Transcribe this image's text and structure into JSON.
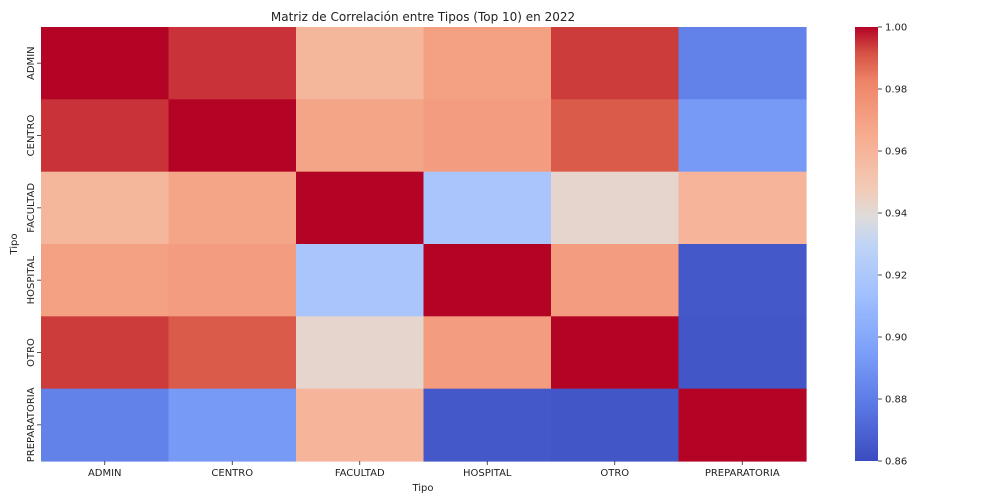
{
  "chart_data": {
    "type": "heatmap",
    "title": "Matriz de Correlación entre Tipos (Top 10) en 2022",
    "xlabel": "Tipo",
    "ylabel": "Tipo",
    "x_categories": [
      "ADMIN",
      "CENTRO",
      "FACULTAD",
      "HOSPITAL",
      "OTRO",
      "PREPARATORIA"
    ],
    "y_categories": [
      "ADMIN",
      "CENTRO",
      "FACULTAD",
      "HOSPITAL",
      "OTRO",
      "PREPARATORIA"
    ],
    "values": [
      [
        1.0,
        0.995,
        0.959,
        0.97,
        0.994,
        0.882
      ],
      [
        0.995,
        1.0,
        0.968,
        0.972,
        0.99,
        0.893
      ],
      [
        0.959,
        0.968,
        1.0,
        0.918,
        0.942,
        0.96
      ],
      [
        0.97,
        0.972,
        0.918,
        1.0,
        0.972,
        0.865
      ],
      [
        0.994,
        0.99,
        0.942,
        0.972,
        1.0,
        0.864
      ],
      [
        0.882,
        0.893,
        0.96,
        0.865,
        0.864,
        1.0
      ]
    ],
    "colorbar": {
      "min": 0.86,
      "max": 1.0,
      "ticks": [
        "0.86",
        "0.88",
        "0.90",
        "0.92",
        "0.94",
        "0.96",
        "0.98",
        "1.00"
      ],
      "colormap": "coolwarm"
    }
  }
}
